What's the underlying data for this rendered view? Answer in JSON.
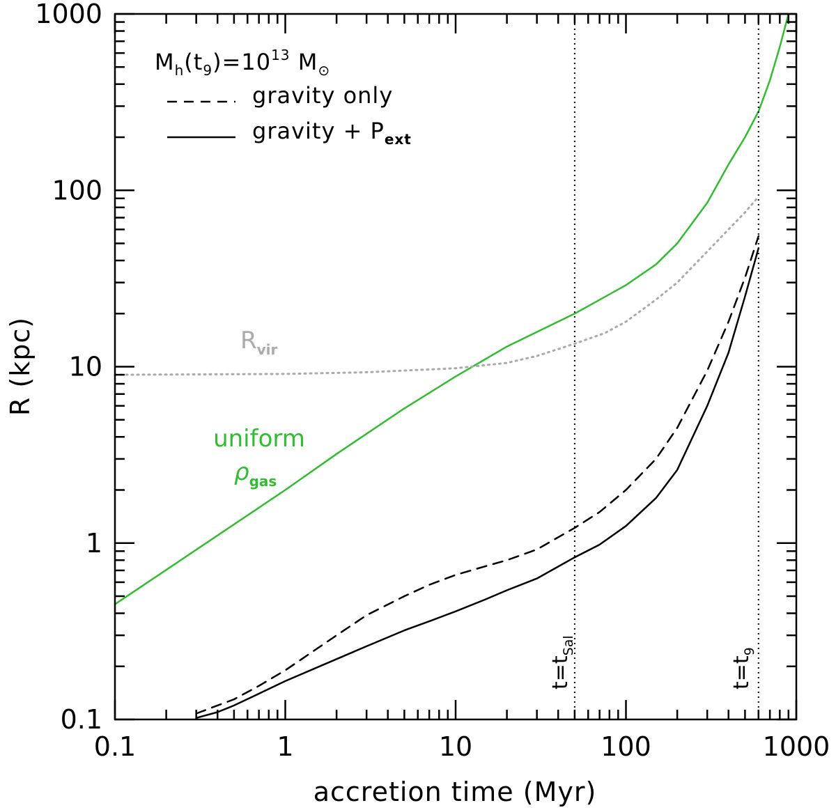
{
  "chart_data": {
    "type": "line",
    "xscale": "log",
    "yscale": "log",
    "xlim": [
      0.1,
      1000
    ],
    "ylim": [
      0.1,
      1000
    ],
    "xlabel": "accretion time (Myr)",
    "ylabel": "R (kpc)",
    "xticks": [
      "0.1",
      "1",
      "10",
      "100",
      "1000"
    ],
    "yticks": [
      "0.1",
      "1",
      "10",
      "100",
      "1000"
    ],
    "legend": {
      "position": "top-left",
      "title": "M_h(t_9)=10^13 M_sun",
      "title_parts": {
        "m": "M",
        "m_sub": "h",
        "paren_open": "(t",
        "t_sub": "9",
        "eq": ")=10",
        "exp": "13",
        "msun": " M",
        "sun_symbol": "⊙"
      },
      "entries": [
        {
          "label": "gravity only",
          "style": "dashed"
        },
        {
          "label": "gravity + P",
          "sub": "ext",
          "style": "solid"
        }
      ]
    },
    "series": [
      {
        "name": "uniform ρgas",
        "label_parts": {
          "line1": "uniform",
          "rho": "ρ",
          "sub": "gas"
        },
        "color": "#33bb33",
        "style": "solid",
        "x": [
          0.1,
          1,
          2,
          5,
          10,
          20,
          50,
          100,
          150,
          200,
          300,
          400,
          500,
          600,
          700,
          800,
          900
        ],
        "y": [
          0.45,
          2.0,
          3.2,
          5.8,
          8.8,
          13.0,
          20,
          29,
          38,
          50,
          85,
          140,
          200,
          280,
          420,
          650,
          1000
        ]
      },
      {
        "name": "Rvir",
        "label_parts": {
          "main": "R",
          "sub": "vir"
        },
        "color": "#aaaaaa",
        "style": "dotted",
        "x": [
          0.1,
          1,
          3,
          10,
          20,
          30,
          50,
          75,
          100,
          150,
          200,
          300,
          400,
          500,
          600
        ],
        "y": [
          9.0,
          9.1,
          9.3,
          9.8,
          10.5,
          11.5,
          13.5,
          15.5,
          18,
          24,
          30,
          45,
          60,
          75,
          92
        ]
      },
      {
        "name": "gravity only",
        "color": "#000000",
        "style": "dashed",
        "x": [
          0.3,
          0.4,
          0.5,
          0.7,
          1,
          2,
          3,
          5,
          7,
          10,
          15,
          20,
          30,
          50,
          70,
          100,
          150,
          200,
          300,
          400,
          500,
          600
        ],
        "y": [
          0.108,
          0.12,
          0.13,
          0.155,
          0.19,
          0.3,
          0.39,
          0.5,
          0.58,
          0.66,
          0.74,
          0.8,
          0.92,
          1.22,
          1.5,
          2.0,
          3.0,
          4.5,
          9.5,
          18,
          32,
          55
        ]
      },
      {
        "name": "gravity + Pext",
        "color": "#000000",
        "style": "solid",
        "x": [
          0.3,
          0.4,
          0.5,
          0.7,
          1,
          2,
          3,
          5,
          7,
          10,
          15,
          20,
          30,
          50,
          70,
          100,
          150,
          200,
          300,
          400,
          500,
          600
        ],
        "y": [
          0.102,
          0.11,
          0.12,
          0.14,
          0.165,
          0.22,
          0.26,
          0.32,
          0.36,
          0.41,
          0.48,
          0.54,
          0.63,
          0.83,
          0.98,
          1.25,
          1.8,
          2.6,
          6.0,
          12,
          25,
          47
        ]
      }
    ],
    "vlines": [
      {
        "x": 50,
        "label": "t=t",
        "sub": "Sal",
        "style": "dotted"
      },
      {
        "x": 600,
        "label": "t=t",
        "sub": "9",
        "style": "dotted"
      }
    ]
  }
}
